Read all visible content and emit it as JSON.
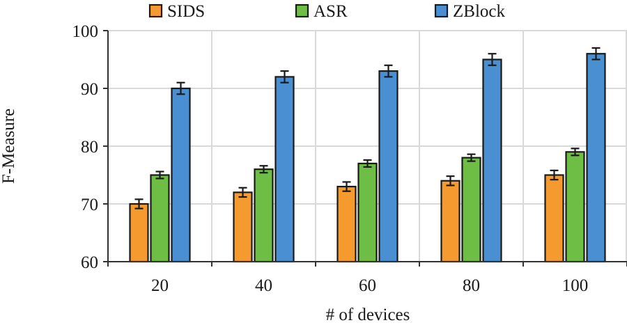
{
  "chart_data": {
    "type": "bar",
    "title": "",
    "xlabel": "# of devices",
    "ylabel": "F-Measure",
    "categories": [
      "20",
      "40",
      "60",
      "80",
      "100"
    ],
    "series": [
      {
        "name": "SIDS",
        "color": "#F59A2E",
        "values": [
          70,
          72,
          73,
          74,
          75
        ],
        "errors": [
          0.8,
          0.8,
          0.8,
          0.8,
          0.8
        ]
      },
      {
        "name": "ASR",
        "color": "#6EBD45",
        "values": [
          75,
          76,
          77,
          78,
          79
        ],
        "errors": [
          0.6,
          0.6,
          0.6,
          0.6,
          0.6
        ]
      },
      {
        "name": "ZBlock",
        "color": "#4A8FD1",
        "values": [
          90,
          92,
          93,
          95,
          96
        ],
        "errors": [
          1.0,
          1.0,
          1.0,
          1.0,
          1.0
        ]
      }
    ],
    "ylim": [
      60,
      100
    ],
    "yticks": [
      60,
      70,
      80,
      90,
      100
    ],
    "grid": true,
    "legend_position": "top-center"
  }
}
